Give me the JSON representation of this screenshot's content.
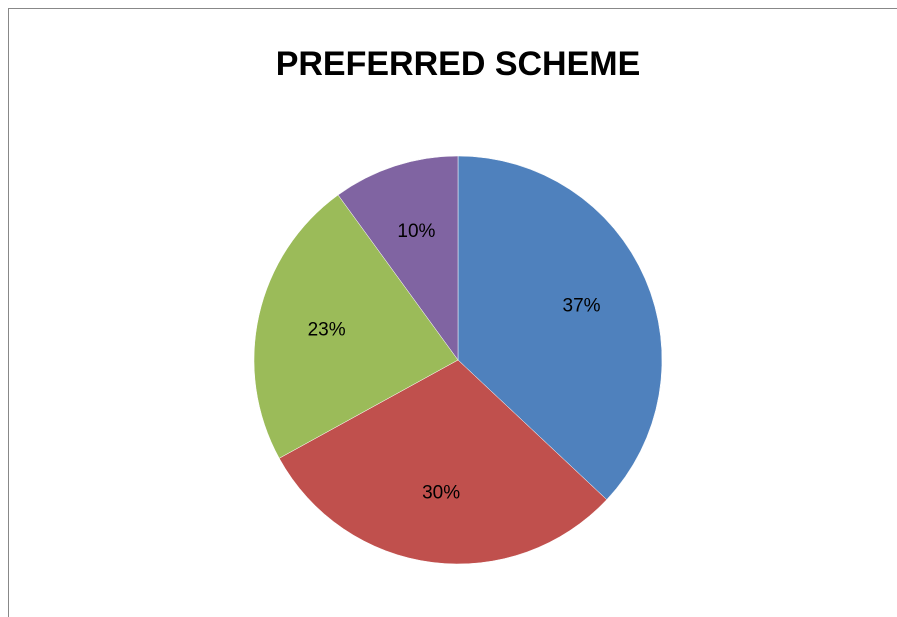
{
  "chart_data": {
    "type": "pie",
    "title": "PREFERRED SCHEME",
    "values": [
      37,
      30,
      23,
      10
    ],
    "value_labels": [
      "37%",
      "30%",
      "23%",
      "10%"
    ],
    "colors": [
      "#4f81bd",
      "#c0504d",
      "#9bbb59",
      "#8064a2"
    ]
  }
}
